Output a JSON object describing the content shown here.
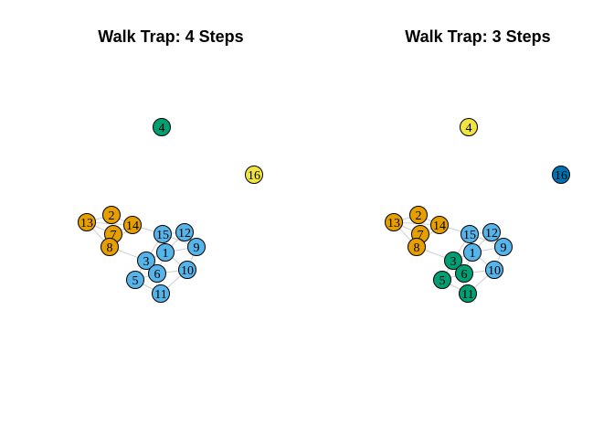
{
  "palette": {
    "orange": "#E69F00",
    "skyblue": "#56B4E9",
    "green": "#009E73",
    "yellow": "#F0E442",
    "blue": "#0072B2",
    "edge": "#cfcfcf"
  },
  "edges": [
    [
      13,
      2
    ],
    [
      13,
      7
    ],
    [
      13,
      8
    ],
    [
      13,
      14
    ],
    [
      2,
      7
    ],
    [
      2,
      14
    ],
    [
      7,
      8
    ],
    [
      7,
      14
    ],
    [
      8,
      14
    ],
    [
      14,
      15
    ],
    [
      15,
      12
    ],
    [
      15,
      1
    ],
    [
      15,
      9
    ],
    [
      12,
      9
    ],
    [
      12,
      1
    ],
    [
      1,
      9
    ],
    [
      1,
      3
    ],
    [
      1,
      10
    ],
    [
      1,
      6
    ],
    [
      9,
      10
    ],
    [
      3,
      5
    ],
    [
      3,
      6
    ],
    [
      3,
      11
    ],
    [
      5,
      6
    ],
    [
      6,
      11
    ],
    [
      6,
      10
    ],
    [
      5,
      11
    ],
    [
      8,
      3
    ],
    [
      15,
      3
    ],
    [
      10,
      11
    ]
  ],
  "panels": [
    {
      "title": "Walk Trap: 4 Steps",
      "membership": {
        "1": "skyblue",
        "2": "orange",
        "3": "skyblue",
        "4": "green",
        "5": "skyblue",
        "6": "skyblue",
        "7": "orange",
        "8": "orange",
        "9": "skyblue",
        "10": "skyblue",
        "11": "skyblue",
        "12": "skyblue",
        "13": "orange",
        "14": "orange",
        "15": "skyblue",
        "16": "yellow"
      }
    },
    {
      "title": "Walk Trap: 3 Steps",
      "membership": {
        "1": "skyblue",
        "2": "orange",
        "3": "green",
        "4": "yellow",
        "5": "green",
        "6": "green",
        "7": "orange",
        "8": "orange",
        "9": "skyblue",
        "10": "skyblue",
        "11": "green",
        "12": "skyblue",
        "13": "orange",
        "14": "orange",
        "15": "skyblue",
        "16": "blue"
      }
    }
  ]
}
